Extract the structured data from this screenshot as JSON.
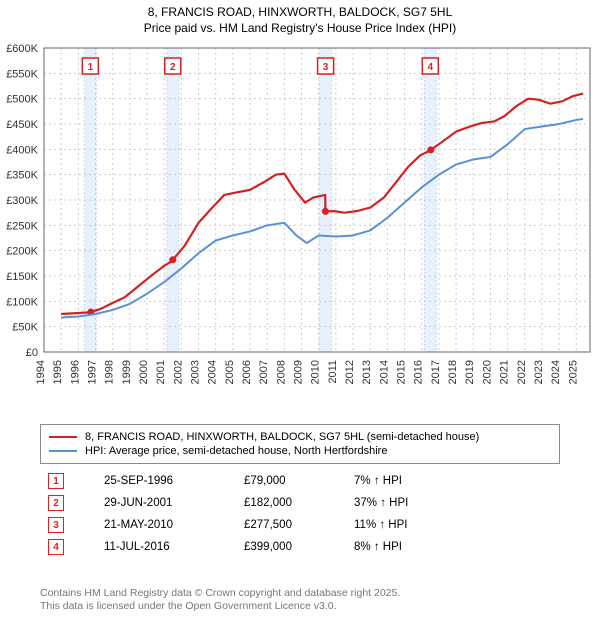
{
  "title_line1": "8, FRANCIS ROAD, HINXWORTH, BALDOCK, SG7 5HL",
  "title_line2": "Price paid vs. HM Land Registry's House Price Index (HPI)",
  "chart": {
    "type": "line",
    "background_color": "#ffffff",
    "grid_color": "#cccccc",
    "grid_dash": "2,3",
    "axis_color": "#666666",
    "font_size_tick": 11,
    "x_years": [
      1994,
      1995,
      1996,
      1997,
      1998,
      1999,
      2000,
      2001,
      2002,
      2003,
      2004,
      2005,
      2006,
      2007,
      2008,
      2009,
      2010,
      2011,
      2012,
      2013,
      2014,
      2015,
      2016,
      2017,
      2018,
      2019,
      2020,
      2021,
      2022,
      2023,
      2024,
      2025
    ],
    "x_min": 1994,
    "x_max": 2025.8,
    "y_ticks": [
      0,
      50,
      100,
      150,
      200,
      250,
      300,
      350,
      400,
      450,
      500,
      550,
      600
    ],
    "y_tick_labels": [
      "£0",
      "£50K",
      "£100K",
      "£150K",
      "£200K",
      "£250K",
      "£300K",
      "£350K",
      "£400K",
      "£450K",
      "£500K",
      "£550K",
      "£600K"
    ],
    "y_min": 0,
    "y_max": 600,
    "marker_bands": [
      {
        "x": 1996.7,
        "label": "1"
      },
      {
        "x": 2001.5,
        "label": "2"
      },
      {
        "x": 2010.4,
        "label": "3"
      },
      {
        "x": 2016.5,
        "label": "4"
      }
    ],
    "marker_band_color": "#e8f0fb",
    "marker_line_color": "#c7d6ef",
    "marker_box_border": "#d22222",
    "marker_box_text": "#d22222",
    "series": [
      {
        "name": "price_paid",
        "color": "#d22222",
        "width": 2.2,
        "points": [
          [
            1995.0,
            75
          ],
          [
            1995.5,
            76
          ],
          [
            1996.0,
            77
          ],
          [
            1996.5,
            78
          ],
          [
            1996.73,
            79
          ],
          [
            1996.74,
            79
          ],
          [
            1997.3,
            85
          ],
          [
            1998.0,
            97
          ],
          [
            1998.7,
            108
          ],
          [
            1999.5,
            130
          ],
          [
            2000.3,
            152
          ],
          [
            2001.0,
            170
          ],
          [
            2001.49,
            180
          ],
          [
            2001.5,
            182
          ],
          [
            2002.2,
            210
          ],
          [
            2003.0,
            255
          ],
          [
            2003.8,
            285
          ],
          [
            2004.5,
            310
          ],
          [
            2005.2,
            315
          ],
          [
            2006.0,
            320
          ],
          [
            2006.8,
            335
          ],
          [
            2007.5,
            350
          ],
          [
            2008.0,
            352
          ],
          [
            2008.6,
            320
          ],
          [
            2009.2,
            295
          ],
          [
            2009.7,
            305
          ],
          [
            2010.38,
            310
          ],
          [
            2010.39,
            277.5
          ],
          [
            2010.9,
            278
          ],
          [
            2011.5,
            275
          ],
          [
            2012.2,
            278
          ],
          [
            2013.0,
            285
          ],
          [
            2013.8,
            305
          ],
          [
            2014.5,
            335
          ],
          [
            2015.2,
            365
          ],
          [
            2015.9,
            388
          ],
          [
            2016.52,
            398
          ],
          [
            2016.53,
            399
          ],
          [
            2017.2,
            415
          ],
          [
            2018.0,
            435
          ],
          [
            2018.8,
            445
          ],
          [
            2019.5,
            452
          ],
          [
            2020.2,
            455
          ],
          [
            2020.8,
            465
          ],
          [
            2021.5,
            485
          ],
          [
            2022.2,
            500
          ],
          [
            2022.8,
            498
          ],
          [
            2023.5,
            490
          ],
          [
            2024.2,
            495
          ],
          [
            2024.8,
            505
          ],
          [
            2025.4,
            510
          ]
        ],
        "dots": [
          [
            1996.73,
            79
          ],
          [
            2001.5,
            182
          ],
          [
            2010.39,
            277.5
          ],
          [
            2016.53,
            399
          ]
        ]
      },
      {
        "name": "hpi",
        "color": "#5b8fd6",
        "width": 2.0,
        "points": [
          [
            1995.0,
            68
          ],
          [
            1996.0,
            70
          ],
          [
            1997.0,
            75
          ],
          [
            1998.0,
            83
          ],
          [
            1999.0,
            95
          ],
          [
            2000.0,
            115
          ],
          [
            2001.0,
            138
          ],
          [
            2002.0,
            165
          ],
          [
            2003.0,
            195
          ],
          [
            2004.0,
            220
          ],
          [
            2005.0,
            230
          ],
          [
            2006.0,
            238
          ],
          [
            2007.0,
            250
          ],
          [
            2008.0,
            255
          ],
          [
            2008.7,
            230
          ],
          [
            2009.3,
            215
          ],
          [
            2010.0,
            230
          ],
          [
            2011.0,
            228
          ],
          [
            2012.0,
            230
          ],
          [
            2013.0,
            240
          ],
          [
            2014.0,
            265
          ],
          [
            2015.0,
            295
          ],
          [
            2016.0,
            325
          ],
          [
            2017.0,
            350
          ],
          [
            2018.0,
            370
          ],
          [
            2019.0,
            380
          ],
          [
            2020.0,
            385
          ],
          [
            2021.0,
            410
          ],
          [
            2022.0,
            440
          ],
          [
            2023.0,
            445
          ],
          [
            2024.0,
            450
          ],
          [
            2025.0,
            458
          ],
          [
            2025.4,
            460
          ]
        ]
      }
    ]
  },
  "legend": [
    {
      "color": "#d22222",
      "label": "8, FRANCIS ROAD, HINXWORTH, BALDOCK, SG7 5HL (semi-detached house)"
    },
    {
      "color": "#5b8fd6",
      "label": "HPI: Average price, semi-detached house, North Hertfordshire"
    }
  ],
  "marker_rows": [
    {
      "n": "1",
      "date": "25-SEP-1996",
      "price": "£79,000",
      "pct": "7% ↑ HPI"
    },
    {
      "n": "2",
      "date": "29-JUN-2001",
      "price": "£182,000",
      "pct": "37% ↑ HPI"
    },
    {
      "n": "3",
      "date": "21-MAY-2010",
      "price": "£277,500",
      "pct": "11% ↑ HPI"
    },
    {
      "n": "4",
      "date": "11-JUL-2016",
      "price": "£399,000",
      "pct": "8% ↑ HPI"
    }
  ],
  "footer_line1": "Contains HM Land Registry data © Crown copyright and database right 2025.",
  "footer_line2": "This data is licensed under the Open Government Licence v3.0."
}
